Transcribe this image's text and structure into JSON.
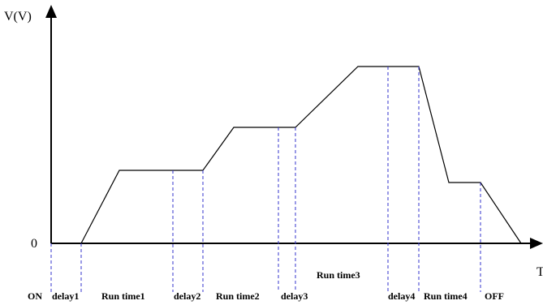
{
  "axes": {
    "y_label": "V(V)",
    "x_label": "T",
    "origin_label": "0"
  },
  "phase_labels": {
    "on": "ON",
    "delay1": "delay1",
    "run_time1": "Run time1",
    "delay2": "delay2",
    "run_time2": "Run time2",
    "delay3": "delay3",
    "run_time3": "Run time3",
    "delay4": "delay4",
    "run_time4": "Run time4",
    "off": "OFF"
  },
  "colors": {
    "curve": "#000000",
    "axes": "#000000",
    "marker_lines": "#3333cc"
  }
}
